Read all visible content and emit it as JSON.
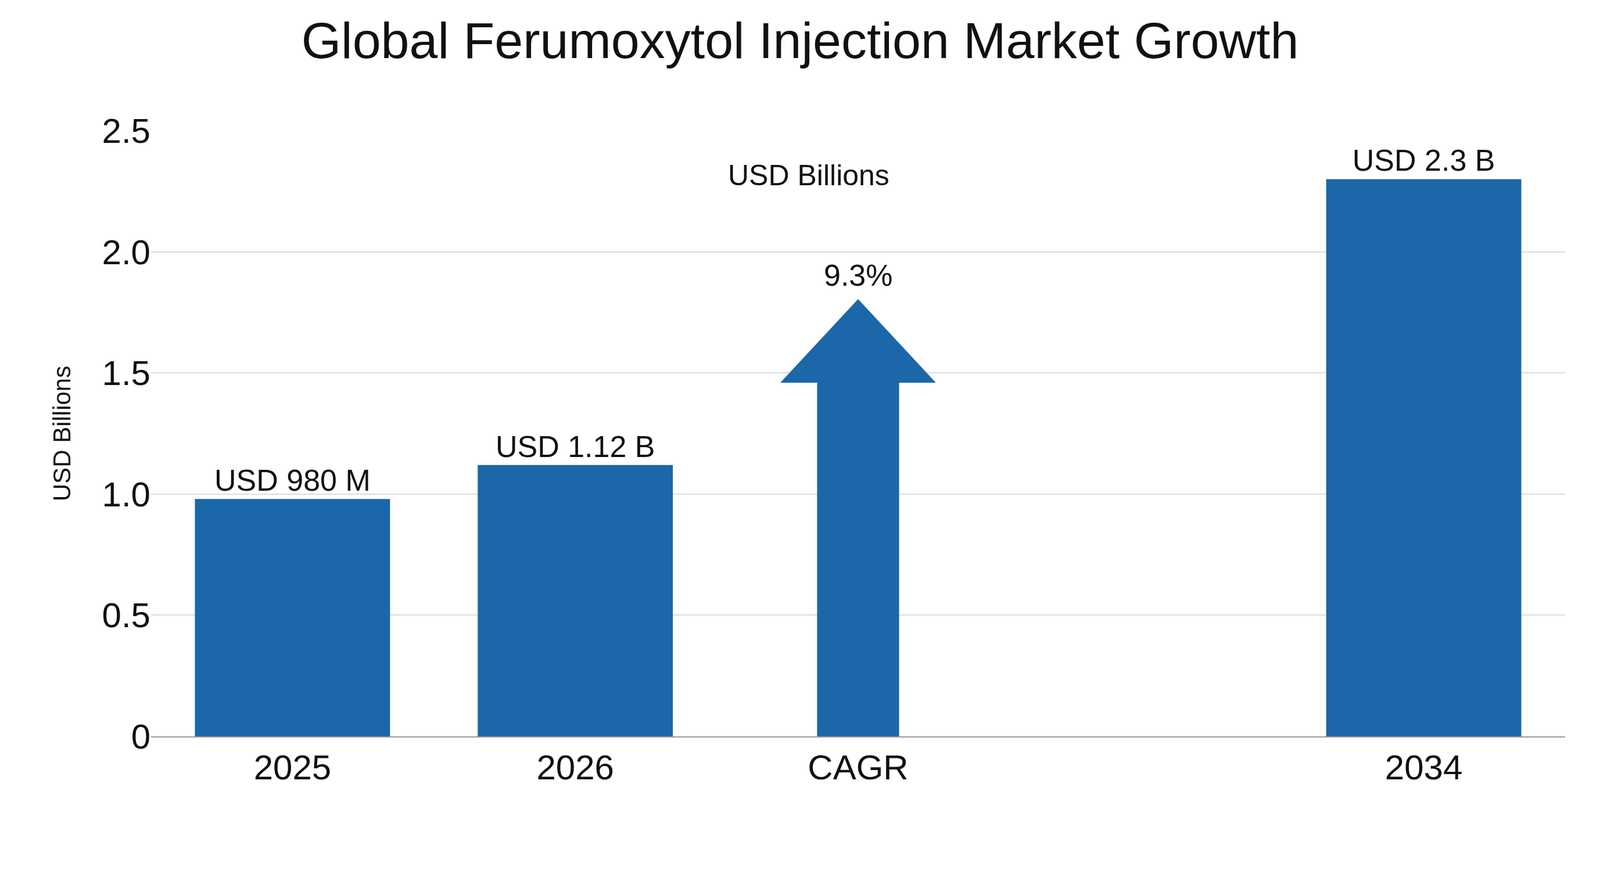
{
  "chart_data": {
    "type": "bar",
    "title": "Global Ferumoxytol Injection Market Growth",
    "subtitle": "USD Billions",
    "y_label": "USD Billions",
    "categories": [
      "2025",
      "2026",
      "CAGR",
      null,
      "2034"
    ],
    "values": [
      0.98,
      1.12,
      null,
      null,
      2.3
    ],
    "value_labels": [
      "USD 980 M",
      "USD 1.12 B",
      null,
      null,
      "USD 2.3 B"
    ],
    "data_labels": true,
    "color": "#1b67a9",
    "ylim": [
      0,
      2.5
    ],
    "yticks": [
      0,
      0.5,
      {
        "value": 1,
        "label": "1.0"
      },
      1.5,
      {
        "value": 2,
        "label": "2.0"
      },
      2.5
    ],
    "grid": true,
    "annotations": [
      {
        "text": "9.3%",
        "category": "CAGR"
      }
    ]
  }
}
